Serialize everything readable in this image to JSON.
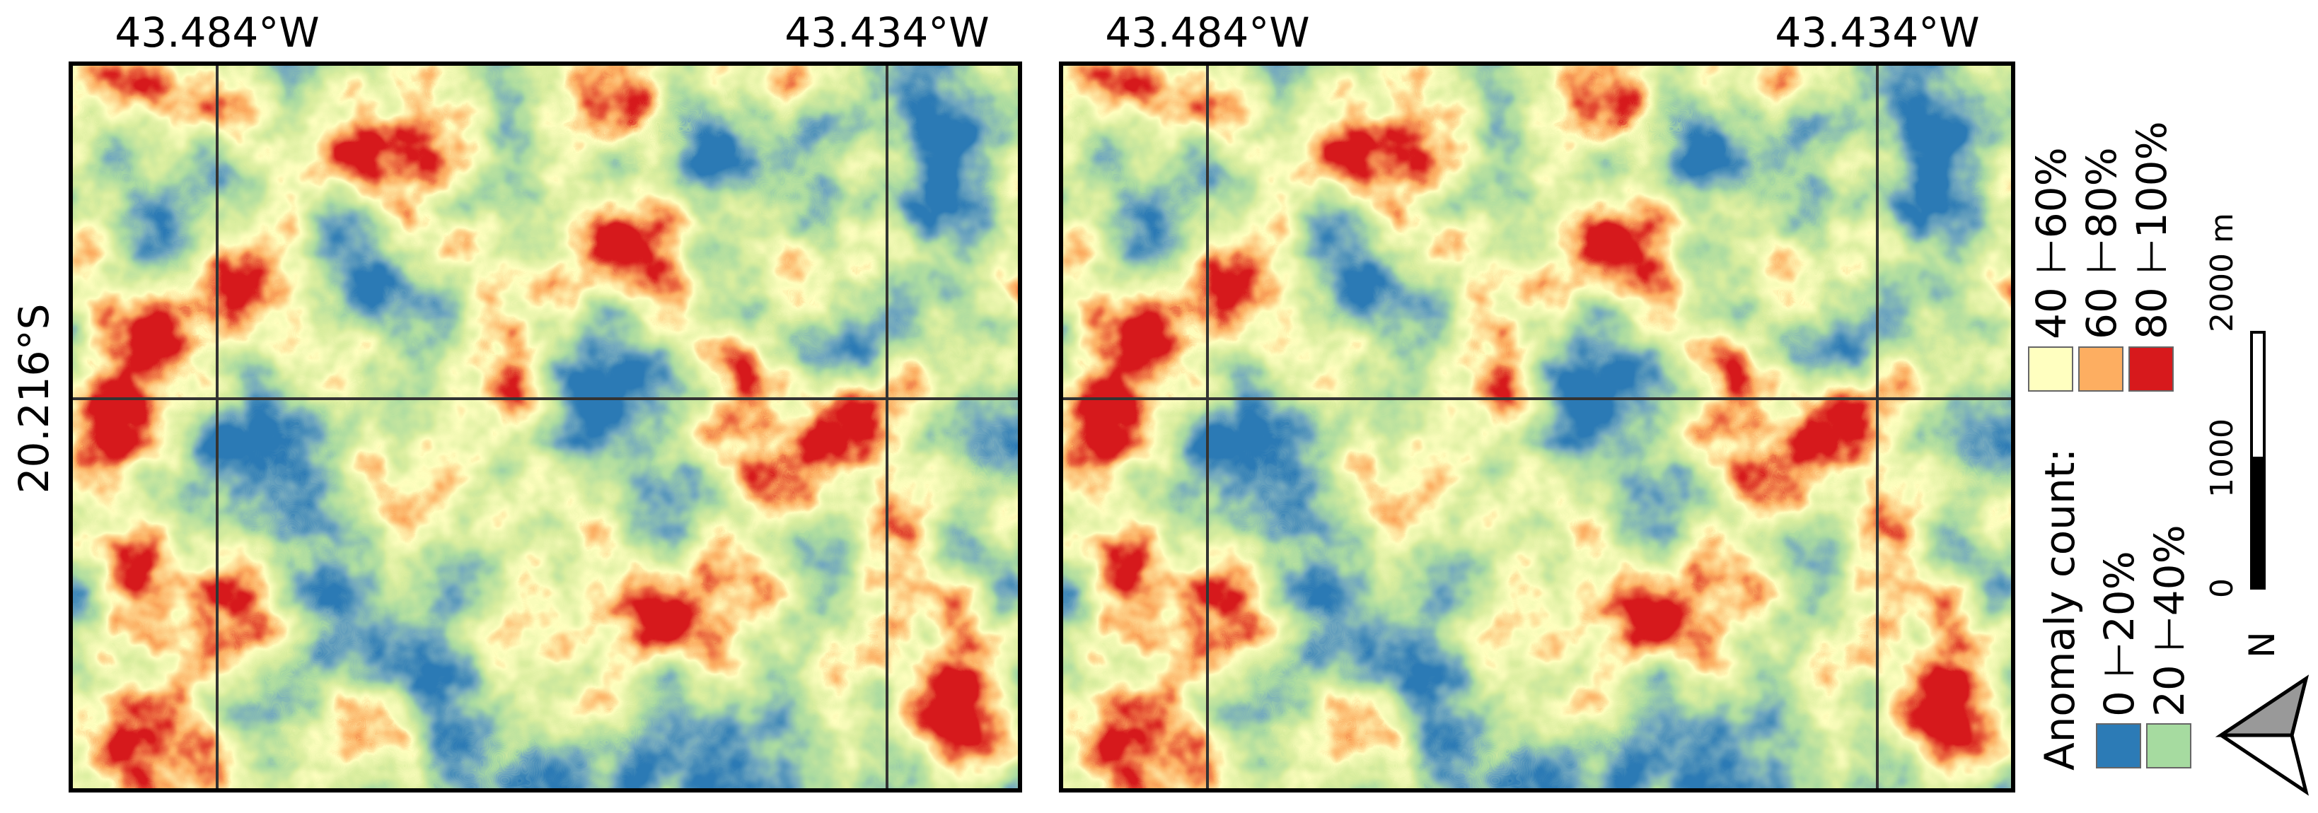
{
  "panels": [
    {
      "lon_labels": [
        "43.484°W",
        "43.434°W"
      ],
      "lat_label": "20.216°S"
    },
    {
      "lon_labels": [
        "43.484°W",
        "43.434°W"
      ]
    }
  ],
  "legend": {
    "title": "Anomaly count:",
    "classes": [
      {
        "label": "0 ⊢20%",
        "color": "#2c7bb6"
      },
      {
        "label": "20 ⊢40%",
        "color": "#a6dba0"
      },
      {
        "label": "40 ⊢60%",
        "color": "#ffffc0"
      },
      {
        "label": "60 ⊢80%",
        "color": "#fdae61"
      },
      {
        "label": "80 ⊢100%",
        "color": "#d7191c"
      }
    ]
  },
  "scale_bar": {
    "labels": [
      "0",
      "1000",
      "2000 m"
    ]
  },
  "north_arrow": {
    "label": "N"
  }
}
